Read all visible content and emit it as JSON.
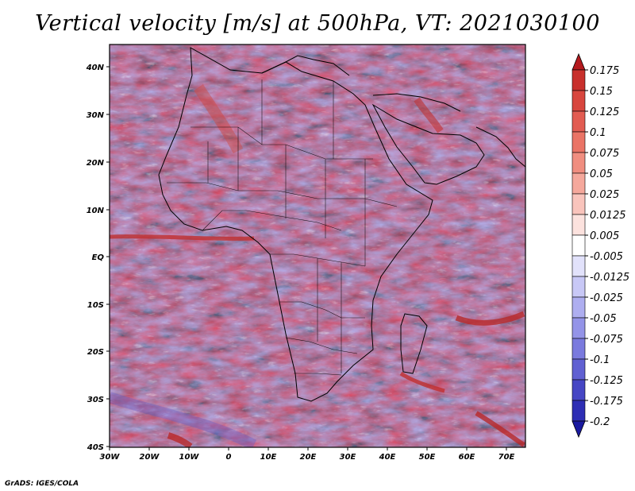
{
  "title": "Vertical velocity [m/s] at 500hPa, VT: 2021030100",
  "lat_labels": [
    "40N",
    "30N",
    "20N",
    "10N",
    "EQ",
    "10S",
    "20S",
    "30S",
    "40S"
  ],
  "lon_labels": [
    "30W",
    "20W",
    "10W",
    "0",
    "10E",
    "20E",
    "30E",
    "40E",
    "50E",
    "60E",
    "70E"
  ],
  "colorbar": {
    "levels": [
      "0.175",
      "0.15",
      "0.125",
      "0.1",
      "0.075",
      "0.05",
      "0.025",
      "0.0125",
      "0.005",
      "-0.005",
      "-0.0125",
      "-0.025",
      "-0.05",
      "-0.075",
      "-0.1",
      "-0.125",
      "-0.175",
      "-0.2"
    ],
    "colors": [
      "#b41a1e",
      "#c8302c",
      "#d8463e",
      "#e25c52",
      "#ea7466",
      "#f08e80",
      "#f5a89c",
      "#f9c4bc",
      "#fce2de",
      "#ffffff",
      "#e2e2fb",
      "#c8c8f6",
      "#aeaef0",
      "#9494e8",
      "#7a7ade",
      "#6060d2",
      "#4646c4",
      "#2e2eb4",
      "#1a1aa0"
    ]
  },
  "credit": "GrADS: IGES/COLA"
}
